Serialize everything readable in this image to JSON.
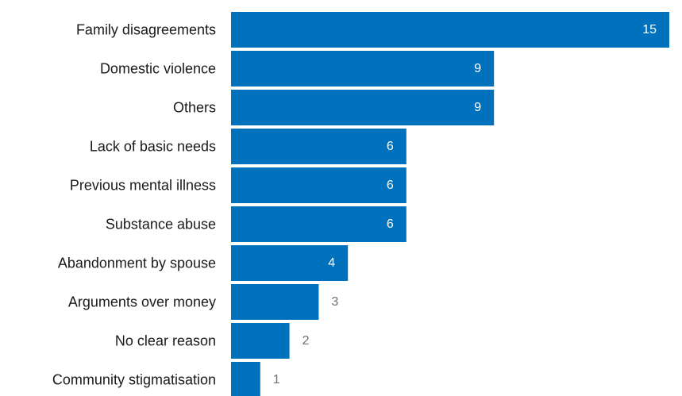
{
  "chart_data": {
    "type": "bar",
    "orientation": "horizontal",
    "categories": [
      "Family disagreements",
      "Domestic violence",
      "Others",
      "Lack of basic needs",
      "Previous mental illness",
      "Substance abuse",
      "Abandonment by spouse",
      "Arguments over money",
      "No clear reason",
      "Community stigmatisation"
    ],
    "values": [
      15,
      9,
      9,
      6,
      6,
      6,
      4,
      3,
      2,
      1
    ],
    "xlim": [
      0,
      15
    ],
    "grid": false,
    "legend": "none",
    "bar_color": "#0071bc",
    "label_color_outside": "#707070",
    "label_color_inside": "#ffffff"
  }
}
